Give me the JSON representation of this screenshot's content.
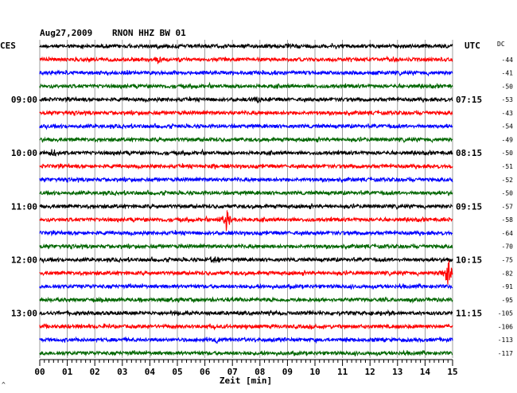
{
  "header": {
    "date": "Aug27,2009",
    "station": "RNON HHZ BW 01",
    "left_zone": "CES",
    "right_zone": "UTC",
    "dc_label": "DC"
  },
  "left_hour_labels": [
    {
      "row": 4,
      "text": "09:00"
    },
    {
      "row": 8,
      "text": "10:00"
    },
    {
      "row": 12,
      "text": "11:00"
    },
    {
      "row": 16,
      "text": "12:00"
    },
    {
      "row": 20,
      "text": "13:00"
    }
  ],
  "right_hour_labels": [
    {
      "row": 4,
      "text": "07:15"
    },
    {
      "row": 8,
      "text": "08:15"
    },
    {
      "row": 12,
      "text": "09:15"
    },
    {
      "row": 16,
      "text": "10:15"
    },
    {
      "row": 20,
      "text": "11:15"
    }
  ],
  "dc_offsets": [
    "-44",
    "-41",
    "-50",
    "-53",
    "-43",
    "-54",
    "-49",
    "-50",
    "-51",
    "-52",
    "-50",
    "-57",
    "-58",
    "-64",
    "-70",
    "-75",
    "-82",
    "-91",
    "-95",
    "-105",
    "-106",
    "-113",
    "-117"
  ],
  "x_axis": {
    "ticks": [
      "00",
      "01",
      "02",
      "03",
      "04",
      "05",
      "06",
      "07",
      "08",
      "09",
      "10",
      "11",
      "12",
      "13",
      "14",
      "15"
    ],
    "label": "Zeit [min]"
  },
  "trace_colors": [
    "#000000",
    "#ff0000",
    "#0000ff",
    "#006600"
  ],
  "events": [
    {
      "row": 13,
      "minute": 6.8,
      "amp": 16
    },
    {
      "row": 17,
      "minute": 14.85,
      "amp": 20
    },
    {
      "row": 1,
      "minute": 4.3,
      "amp": 5
    },
    {
      "row": 16,
      "minute": 6.4,
      "amp": 5
    },
    {
      "row": 4,
      "minute": 7.9,
      "amp": 5
    },
    {
      "row": 8,
      "minute": 0.5,
      "amp": 5
    },
    {
      "row": 9,
      "minute": 6.3,
      "amp": 4
    },
    {
      "row": 22,
      "minute": 6.5,
      "amp": 5
    }
  ],
  "corner_mark": "^"
}
